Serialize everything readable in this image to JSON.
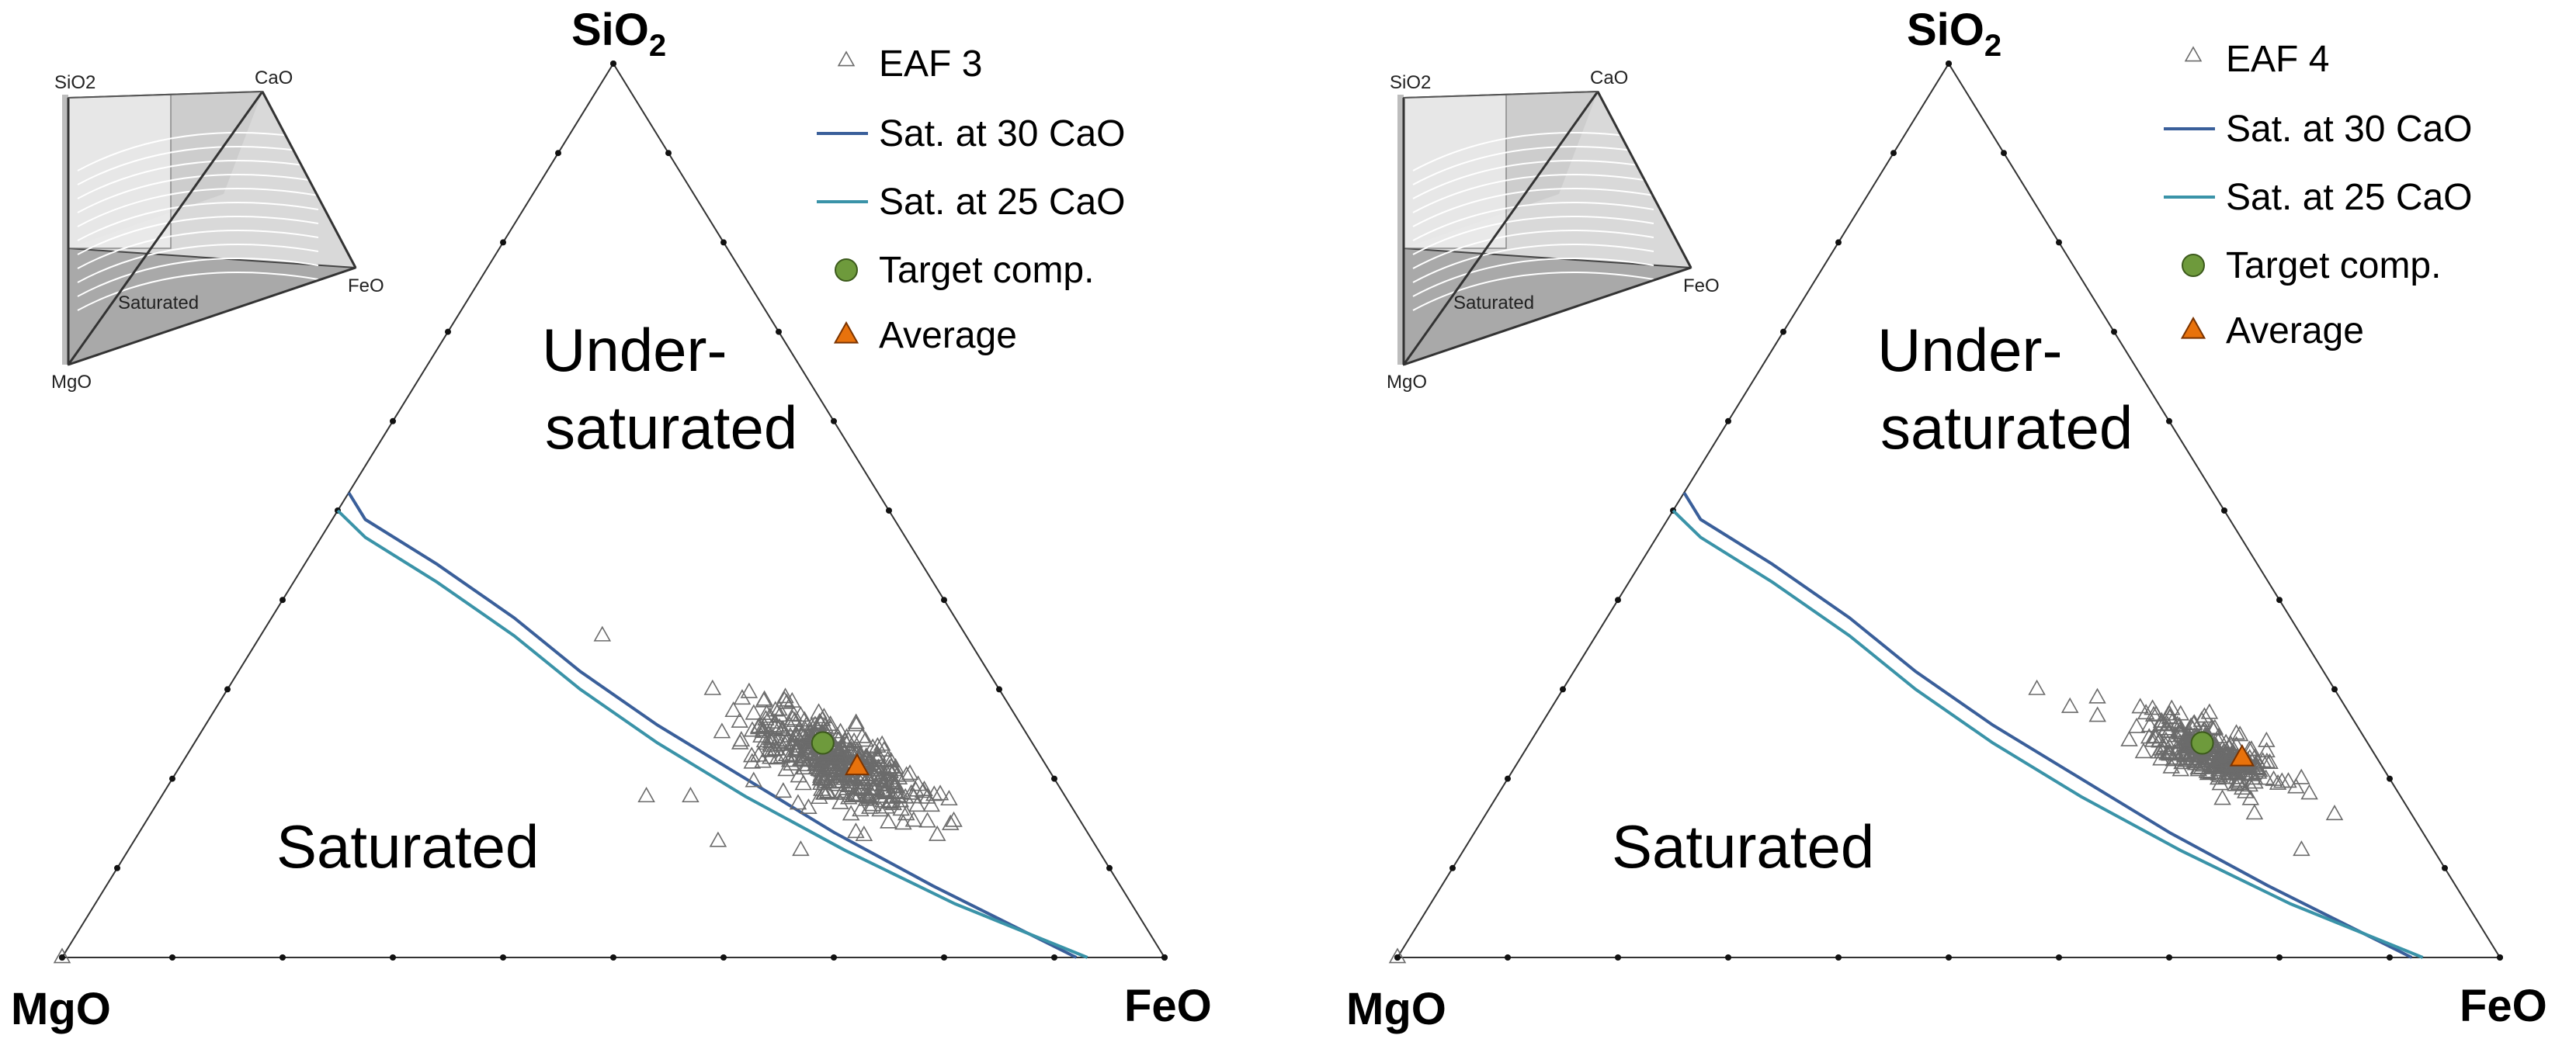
{
  "colors": {
    "sat30": "#3a5f9a",
    "sat25": "#3a93a8",
    "points": "#6b6b6b",
    "target": "#6e9a3c",
    "average": "#e8720c"
  },
  "chart_data": [
    {
      "type": "scatter",
      "subtype": "ternary",
      "title": "",
      "axes": {
        "top": {
          "label": "SiO",
          "subscript": "2"
        },
        "left": {
          "label": "MgO"
        },
        "right": {
          "label": "FeO"
        }
      },
      "tick_count": 10,
      "regions": {
        "upper_line1": "Under-",
        "upper_line2": "saturated",
        "lower": "Saturated"
      },
      "legend": {
        "points": "EAF 3",
        "sat30": "Sat. at 30 CaO",
        "sat25": "Sat. at 25 CaO",
        "target": "Target comp.",
        "average": "Average"
      },
      "series_units": "fraction of (SiO2, MgO, FeO)",
      "saturation_30": [
        [
          0.52,
          0.48,
          0.0
        ],
        [
          0.49,
          0.48,
          0.03
        ],
        [
          0.44,
          0.44,
          0.12
        ],
        [
          0.38,
          0.4,
          0.22
        ],
        [
          0.32,
          0.37,
          0.31
        ],
        [
          0.26,
          0.33,
          0.41
        ],
        [
          0.2,
          0.28,
          0.52
        ],
        [
          0.14,
          0.23,
          0.63
        ],
        [
          0.08,
          0.17,
          0.75
        ],
        [
          0.0,
          0.08,
          0.92
        ]
      ],
      "saturation_25": [
        [
          0.5,
          0.5,
          0.0
        ],
        [
          0.47,
          0.49,
          0.04
        ],
        [
          0.42,
          0.45,
          0.13
        ],
        [
          0.36,
          0.41,
          0.23
        ],
        [
          0.3,
          0.38,
          0.32
        ],
        [
          0.24,
          0.34,
          0.42
        ],
        [
          0.18,
          0.29,
          0.53
        ],
        [
          0.12,
          0.23,
          0.65
        ],
        [
          0.06,
          0.16,
          0.78
        ],
        [
          0.0,
          0.07,
          0.93
        ]
      ],
      "target": [
        0.24,
        0.19,
        0.57
      ],
      "average": [
        0.22,
        0.19,
        0.59
      ],
      "cluster": {
        "center": [
          0.22,
          0.19,
          0.59
        ],
        "n": 420,
        "spread_along": 0.06,
        "spread_across": 0.025
      },
      "outliers": [
        [
          0.36,
          0.33,
          0.31
        ],
        [
          0.3,
          0.26,
          0.44
        ],
        [
          0.18,
          0.38,
          0.44
        ],
        [
          0.18,
          0.34,
          0.48
        ],
        [
          0.13,
          0.34,
          0.53
        ],
        [
          0.12,
          0.27,
          0.61
        ],
        [
          0.14,
          0.21,
          0.65
        ],
        [
          0.0,
          1.0,
          0.0
        ]
      ],
      "inset": {
        "labels": {
          "top_left": "SiO2",
          "top_right": "CaO",
          "right": "FeO",
          "bottom": "MgO",
          "plane": "Saturated"
        }
      }
    },
    {
      "type": "scatter",
      "subtype": "ternary",
      "title": "",
      "axes": {
        "top": {
          "label": "SiO",
          "subscript": "2"
        },
        "left": {
          "label": "MgO"
        },
        "right": {
          "label": "FeO"
        }
      },
      "tick_count": 10,
      "regions": {
        "upper_line1": "Under-",
        "upper_line2": "saturated",
        "lower": "Saturated"
      },
      "legend": {
        "points": "EAF 4",
        "sat30": "Sat. at 30 CaO",
        "sat25": "Sat. at 25 CaO",
        "target": "Target comp.",
        "average": "Average"
      },
      "series_units": "fraction of (SiO2, MgO, FeO)",
      "saturation_30": [
        [
          0.52,
          0.48,
          0.0
        ],
        [
          0.49,
          0.48,
          0.03
        ],
        [
          0.44,
          0.44,
          0.12
        ],
        [
          0.38,
          0.4,
          0.22
        ],
        [
          0.32,
          0.37,
          0.31
        ],
        [
          0.26,
          0.33,
          0.41
        ],
        [
          0.2,
          0.28,
          0.52
        ],
        [
          0.14,
          0.23,
          0.63
        ],
        [
          0.08,
          0.17,
          0.75
        ],
        [
          0.0,
          0.08,
          0.92
        ]
      ],
      "saturation_25": [
        [
          0.5,
          0.5,
          0.0
        ],
        [
          0.47,
          0.49,
          0.04
        ],
        [
          0.42,
          0.45,
          0.13
        ],
        [
          0.36,
          0.41,
          0.23
        ],
        [
          0.3,
          0.38,
          0.32
        ],
        [
          0.24,
          0.34,
          0.42
        ],
        [
          0.18,
          0.29,
          0.53
        ],
        [
          0.12,
          0.23,
          0.65
        ],
        [
          0.06,
          0.16,
          0.78
        ],
        [
          0.0,
          0.07,
          0.93
        ]
      ],
      "target": [
        0.24,
        0.15,
        0.61
      ],
      "average": [
        0.23,
        0.14,
        0.63
      ],
      "cluster": {
        "center": [
          0.23,
          0.15,
          0.62
        ],
        "n": 300,
        "spread_along": 0.045,
        "spread_across": 0.018
      },
      "outliers": [
        [
          0.3,
          0.27,
          0.43
        ],
        [
          0.28,
          0.25,
          0.47
        ],
        [
          0.27,
          0.23,
          0.5
        ],
        [
          0.19,
          0.09,
          0.72
        ],
        [
          0.16,
          0.07,
          0.77
        ],
        [
          0.12,
          0.12,
          0.76
        ],
        [
          0.0,
          1.0,
          0.0
        ]
      ],
      "inset": {
        "labels": {
          "top_left": "SiO2",
          "top_right": "CaO",
          "right": "FeO",
          "bottom": "MgO",
          "plane": "Saturated"
        }
      }
    }
  ]
}
